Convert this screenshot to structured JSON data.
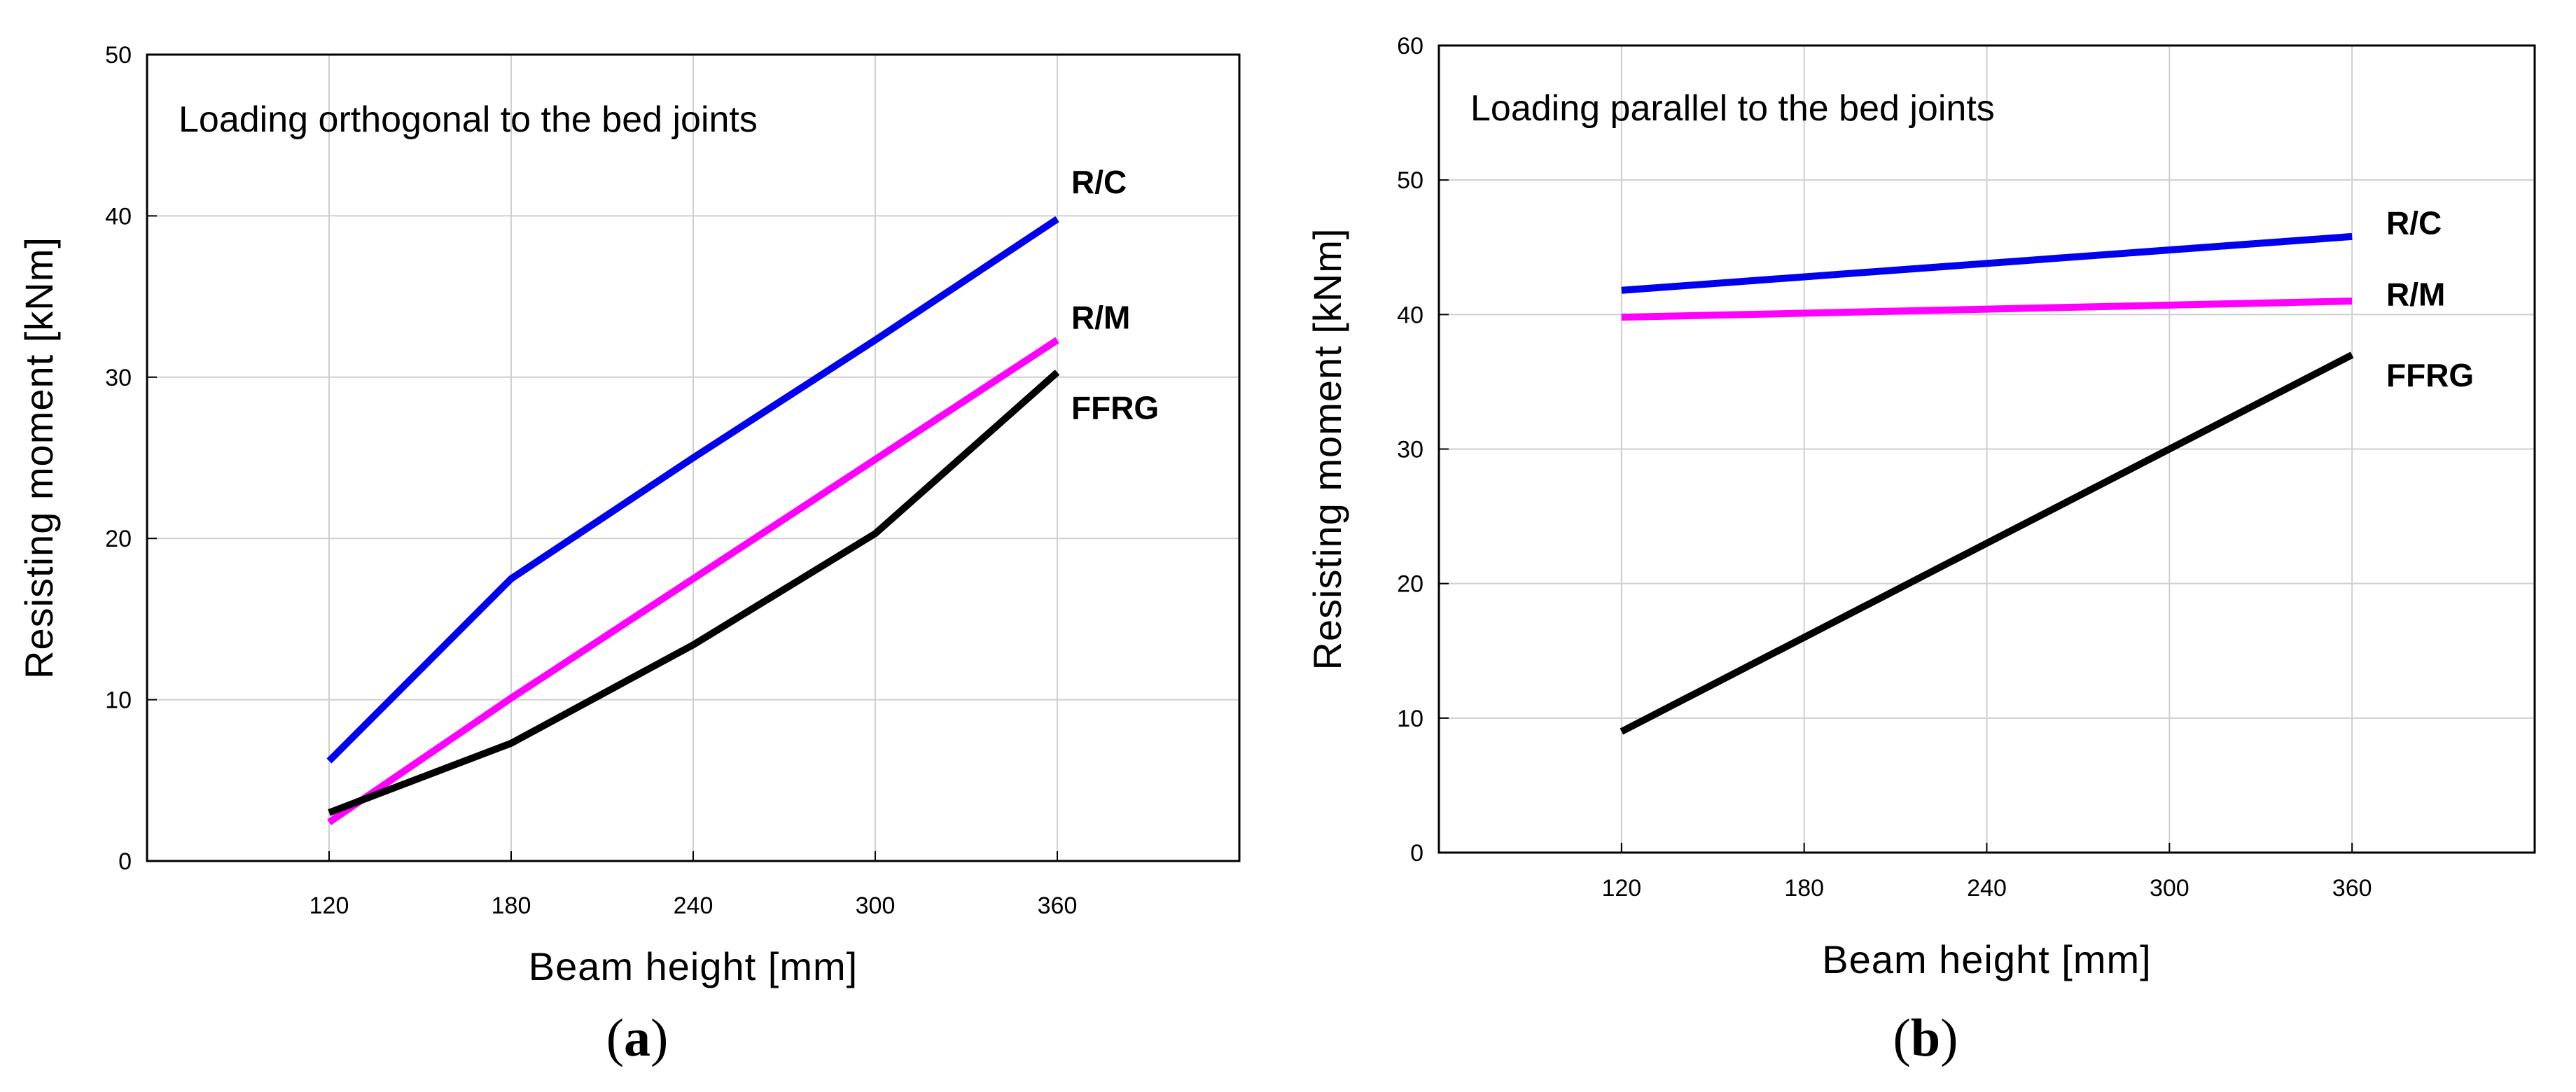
{
  "chart_data": [
    {
      "type": "line",
      "caption": "a",
      "annotation": "Loading orthogonal to the bed joints",
      "xlabel": "Beam height  [mm]",
      "ylabel": "Resisting  moment  [kNm]",
      "x": [
        120,
        180,
        240,
        300,
        360
      ],
      "xlim": [
        60,
        420
      ],
      "ylim": [
        0,
        50
      ],
      "yticks": [
        0,
        10,
        20,
        30,
        40,
        50
      ],
      "xticks": [
        120,
        180,
        240,
        300,
        360
      ],
      "grid": true,
      "series": [
        {
          "name": "R/C",
          "color": "#0000ee",
          "values": [
            6.2,
            17.5,
            25.0,
            32.3,
            39.8
          ]
        },
        {
          "name": "R/M",
          "color": "#ff00ff",
          "values": [
            2.4,
            10.1,
            17.5,
            24.9,
            32.3
          ]
        },
        {
          "name": "FFRG",
          "color": "#000000",
          "values": [
            3.0,
            7.3,
            13.4,
            20.3,
            30.3
          ]
        }
      ],
      "series_label_values": [
        42.1,
        33.7,
        28.1
      ]
    },
    {
      "type": "line",
      "caption": "b",
      "annotation": "Loading parallel to the bed joints",
      "xlabel": "Beam height  [mm]",
      "ylabel": "Resisting  moment  [kNm]",
      "x": [
        120,
        360
      ],
      "xlim": [
        60,
        420
      ],
      "ylim": [
        0,
        60
      ],
      "yticks": [
        0,
        10,
        20,
        30,
        40,
        50,
        60
      ],
      "xticks": [
        120,
        180,
        240,
        300,
        360
      ],
      "grid": true,
      "series": [
        {
          "name": "R/C",
          "color": "#0000ee",
          "values": [
            41.8,
            45.8
          ]
        },
        {
          "name": "R/M",
          "color": "#ff00ff",
          "values": [
            39.8,
            41.0
          ]
        },
        {
          "name": "FFRG",
          "color": "#000000",
          "values": [
            9.0,
            37.0
          ]
        }
      ],
      "series_label_values": [
        46.8,
        41.5,
        35.5
      ]
    }
  ]
}
